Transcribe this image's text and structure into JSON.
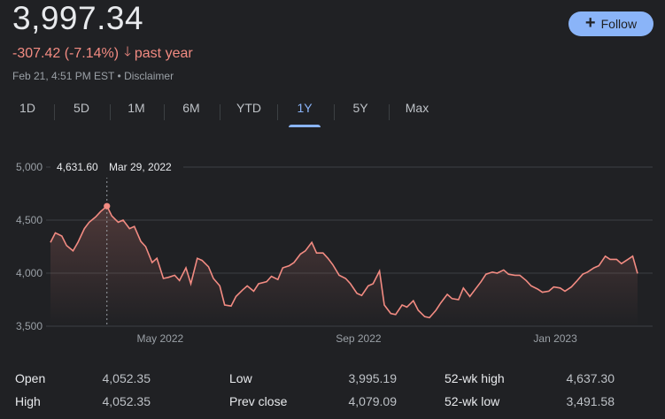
{
  "quote": {
    "price": "3,997.34",
    "change": "-307.42 (-7.14%)",
    "period": "past year",
    "timestamp": "Feb 21, 4:51 PM EST",
    "disclaimer": "Disclaimer",
    "follow_label": "Follow"
  },
  "ranges": [
    "1D",
    "5D",
    "1M",
    "6M",
    "YTD",
    "1Y",
    "5Y",
    "Max"
  ],
  "selected_range": "1Y",
  "tooltip": {
    "value": "4,631.60",
    "date": "Mar 29, 2022"
  },
  "colors": {
    "line": "#f28b82",
    "accent": "#8ab4f8",
    "background": "#202124"
  },
  "stats": [
    {
      "label": "Open",
      "value": "4,052.35"
    },
    {
      "label": "High",
      "value": "4,052.35"
    },
    {
      "label": "Low",
      "value": "3,995.19"
    },
    {
      "label": "Prev close",
      "value": "4,079.09"
    },
    {
      "label": "52-wk high",
      "value": "4,637.30"
    },
    {
      "label": "52-wk low",
      "value": "3,491.58"
    }
  ],
  "chart_data": {
    "type": "area",
    "ylim": [
      3500,
      5000
    ],
    "yticks": [
      "5,000",
      "4,500",
      "4,000",
      "3,500"
    ],
    "ytick_values": [
      5000,
      4500,
      4000,
      3500
    ],
    "xtick_labels": [
      "May 2022",
      "Sep 2022",
      "Jan 2023"
    ],
    "xtick_dates": [
      "2022-05-01",
      "2022-09-01",
      "2023-01-01"
    ],
    "x_start": "2022-02-22",
    "x_end": "2023-02-21",
    "grid": true,
    "highlight": {
      "x": "2022-03-29",
      "y": 4631.6
    },
    "series": [
      {
        "x": [
          "2022-02-22",
          "2022-02-25",
          "2022-03-01",
          "2022-03-04",
          "2022-03-08",
          "2022-03-11",
          "2022-03-15",
          "2022-03-18",
          "2022-03-22",
          "2022-03-25",
          "2022-03-29",
          "2022-04-01",
          "2022-04-05",
          "2022-04-08",
          "2022-04-12",
          "2022-04-15",
          "2022-04-19",
          "2022-04-22",
          "2022-04-26",
          "2022-04-29",
          "2022-05-03",
          "2022-05-06",
          "2022-05-10",
          "2022-05-13",
          "2022-05-17",
          "2022-05-20",
          "2022-05-24",
          "2022-05-27",
          "2022-05-31",
          "2022-06-03",
          "2022-06-07",
          "2022-06-10",
          "2022-06-14",
          "2022-06-17",
          "2022-06-21",
          "2022-06-24",
          "2022-06-28",
          "2022-07-01",
          "2022-07-06",
          "2022-07-09",
          "2022-07-13",
          "2022-07-16",
          "2022-07-20",
          "2022-07-23",
          "2022-07-27",
          "2022-07-30",
          "2022-08-03",
          "2022-08-06",
          "2022-08-10",
          "2022-08-13",
          "2022-08-16",
          "2022-08-20",
          "2022-08-24",
          "2022-08-27",
          "2022-08-31",
          "2022-09-03",
          "2022-09-07",
          "2022-09-10",
          "2022-09-14",
          "2022-09-17",
          "2022-09-21",
          "2022-09-24",
          "2022-09-28",
          "2022-10-01",
          "2022-10-05",
          "2022-10-08",
          "2022-10-12",
          "2022-10-15",
          "2022-10-19",
          "2022-10-22",
          "2022-10-26",
          "2022-10-29",
          "2022-11-02",
          "2022-11-05",
          "2022-11-09",
          "2022-11-12",
          "2022-11-16",
          "2022-11-19",
          "2022-11-23",
          "2022-11-26",
          "2022-11-30",
          "2022-12-03",
          "2022-12-07",
          "2022-12-10",
          "2022-12-14",
          "2022-12-17",
          "2022-12-21",
          "2022-12-24",
          "2022-12-28",
          "2022-12-31",
          "2023-01-04",
          "2023-01-07",
          "2023-01-11",
          "2023-01-14",
          "2023-01-18",
          "2023-01-21",
          "2023-01-25",
          "2023-01-28",
          "2023-02-01",
          "2023-02-04",
          "2023-02-08",
          "2023-02-11",
          "2023-02-15",
          "2023-02-18",
          "2023-02-21"
        ],
        "values": [
          4290,
          4380,
          4350,
          4260,
          4210,
          4290,
          4420,
          4480,
          4530,
          4580,
          4632,
          4540,
          4480,
          4500,
          4420,
          4440,
          4300,
          4250,
          4100,
          4140,
          3950,
          3960,
          3980,
          3930,
          4050,
          3900,
          4140,
          4120,
          4060,
          3950,
          3880,
          3700,
          3690,
          3780,
          3840,
          3880,
          3830,
          3900,
          3920,
          3970,
          3940,
          4050,
          4070,
          4100,
          4180,
          4210,
          4290,
          4190,
          4190,
          4140,
          4080,
          3980,
          3950,
          3900,
          3810,
          3790,
          3880,
          3900,
          4020,
          3700,
          3620,
          3610,
          3700,
          3680,
          3740,
          3650,
          3590,
          3580,
          3650,
          3720,
          3800,
          3760,
          3750,
          3860,
          3780,
          3840,
          3920,
          3990,
          4010,
          4000,
          4030,
          3990,
          3980,
          3980,
          3930,
          3880,
          3850,
          3820,
          3830,
          3870,
          3860,
          3830,
          3870,
          3920,
          3990,
          4010,
          4050,
          4070,
          4160,
          4130,
          4130,
          4090,
          4130,
          4160,
          3997
        ]
      }
    ]
  }
}
